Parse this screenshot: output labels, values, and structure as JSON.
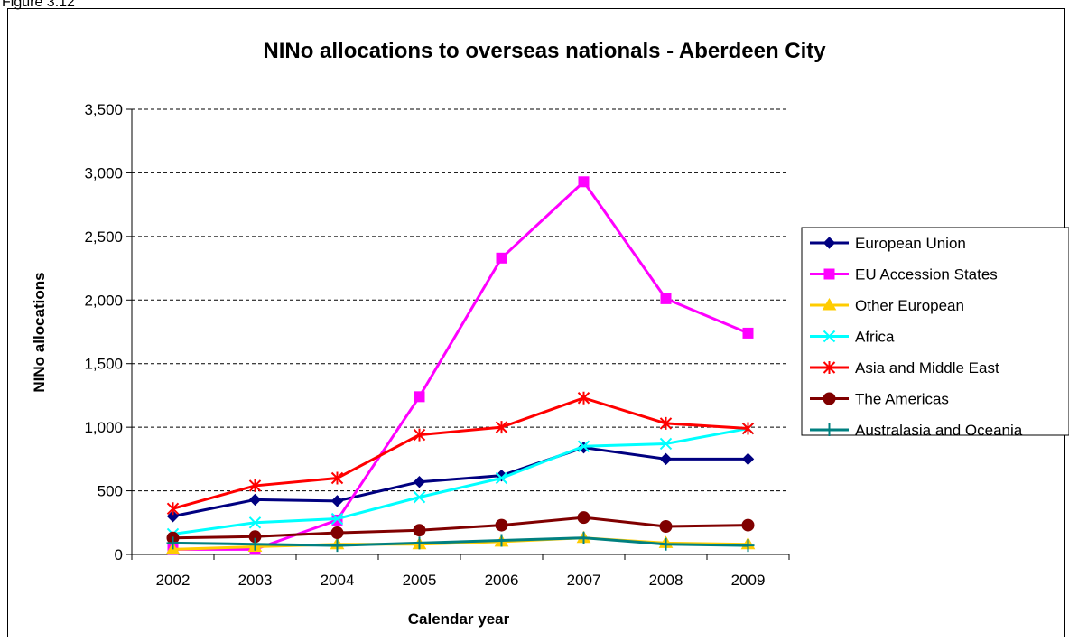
{
  "figure_label": "Figure 3.12",
  "chart_data": {
    "type": "line",
    "title": "NINo allocations to overseas nationals  - Aberdeen City",
    "xlabel": "Calendar year",
    "ylabel": "NINo allocations",
    "categories": [
      "2002",
      "2003",
      "2004",
      "2005",
      "2006",
      "2007",
      "2008",
      "2009"
    ],
    "ylim": [
      0,
      3500
    ],
    "yticks": [
      0,
      500,
      1000,
      1500,
      2000,
      2500,
      3000,
      3500
    ],
    "ytick_labels": [
      "0",
      "500",
      "1,000",
      "1,500",
      "2,000",
      "2,500",
      "3,000",
      "3,500"
    ],
    "grid": "horizontal dashed",
    "legend_position": "right",
    "series": [
      {
        "name": "European Union",
        "color": "#000080",
        "marker": "diamond",
        "values": [
          300,
          430,
          420,
          570,
          620,
          840,
          750,
          750
        ]
      },
      {
        "name": "EU Accession States",
        "color": "#FF00FF",
        "marker": "square",
        "values": [
          40,
          40,
          270,
          1240,
          2330,
          2930,
          2010,
          1740
        ]
      },
      {
        "name": "Other European",
        "color": "#FFCC00",
        "marker": "triangle",
        "values": [
          40,
          60,
          80,
          80,
          100,
          130,
          90,
          80
        ]
      },
      {
        "name": "Africa",
        "color": "#00FFFF",
        "marker": "x",
        "values": [
          160,
          250,
          280,
          450,
          600,
          850,
          870,
          990
        ]
      },
      {
        "name": "Asia and Middle East",
        "color": "#FF0000",
        "marker": "star",
        "values": [
          360,
          540,
          600,
          940,
          1000,
          1230,
          1030,
          990
        ]
      },
      {
        "name": "The Americas",
        "color": "#800000",
        "marker": "circle",
        "values": [
          130,
          140,
          170,
          190,
          230,
          290,
          220,
          230
        ]
      },
      {
        "name": "Australasia and Oceania",
        "color": "#008080",
        "marker": "plus",
        "values": [
          90,
          80,
          70,
          90,
          110,
          130,
          80,
          70
        ]
      }
    ]
  }
}
